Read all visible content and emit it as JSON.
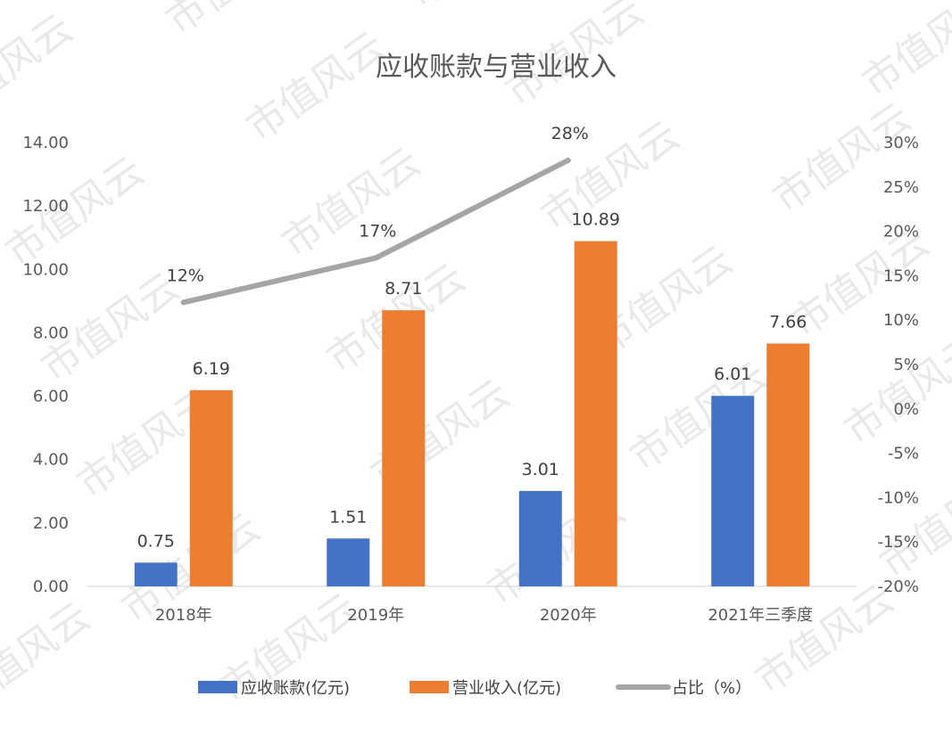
{
  "chart_data": {
    "type": "bar",
    "title": "应收账款与营业收入",
    "categories": [
      "2018年",
      "2019年",
      "2020年",
      "2021年三季度"
    ],
    "series": [
      {
        "name": "应收账款(亿元)",
        "kind": "bar",
        "axis": "left",
        "color": "#4472C4",
        "values": [
          0.75,
          1.51,
          3.01,
          6.01
        ],
        "labels": [
          "0.75",
          "1.51",
          "3.01",
          "6.01"
        ]
      },
      {
        "name": "营业收入(亿元)",
        "kind": "bar",
        "axis": "left",
        "color": "#ED7D31",
        "values": [
          6.19,
          8.71,
          10.89,
          7.66
        ],
        "labels": [
          "6.19",
          "8.71",
          "10.89",
          "7.66"
        ]
      },
      {
        "name": "占比（%）",
        "kind": "line",
        "axis": "right",
        "color": "#A5A5A5",
        "values": [
          12,
          17,
          28,
          null
        ],
        "labels": [
          "12%",
          "17%",
          "28%",
          ""
        ]
      }
    ],
    "y_left": {
      "ylim": [
        0,
        14
      ],
      "ticks": [
        "0.00",
        "2.00",
        "4.00",
        "6.00",
        "8.00",
        "10.00",
        "12.00",
        "14.00"
      ]
    },
    "y_right": {
      "ylim": [
        -20,
        30
      ],
      "ticks": [
        "-20%",
        "-15%",
        "-10%",
        "-5%",
        "0%",
        "5%",
        "10%",
        "15%",
        "20%",
        "25%",
        "30%"
      ]
    },
    "legend": "bottom",
    "grid": false
  },
  "watermark": "市值风云"
}
